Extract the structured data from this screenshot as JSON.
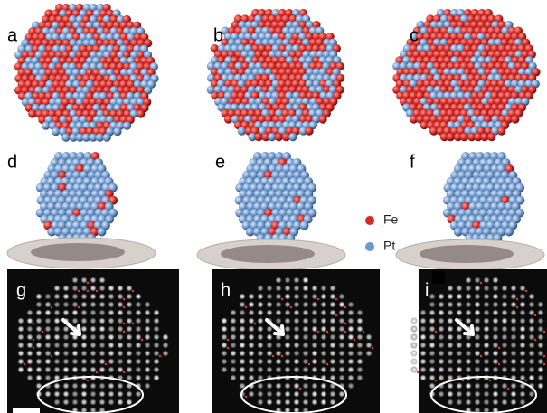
{
  "panels": {
    "labels": [
      "a",
      "b",
      "c",
      "d",
      "e",
      "f",
      "g",
      "h",
      "i"
    ]
  },
  "legend": [
    {
      "label": "Fe",
      "color": "#d42a2a"
    },
    {
      "label": "Pt",
      "color": "#6f98cc"
    }
  ]
}
